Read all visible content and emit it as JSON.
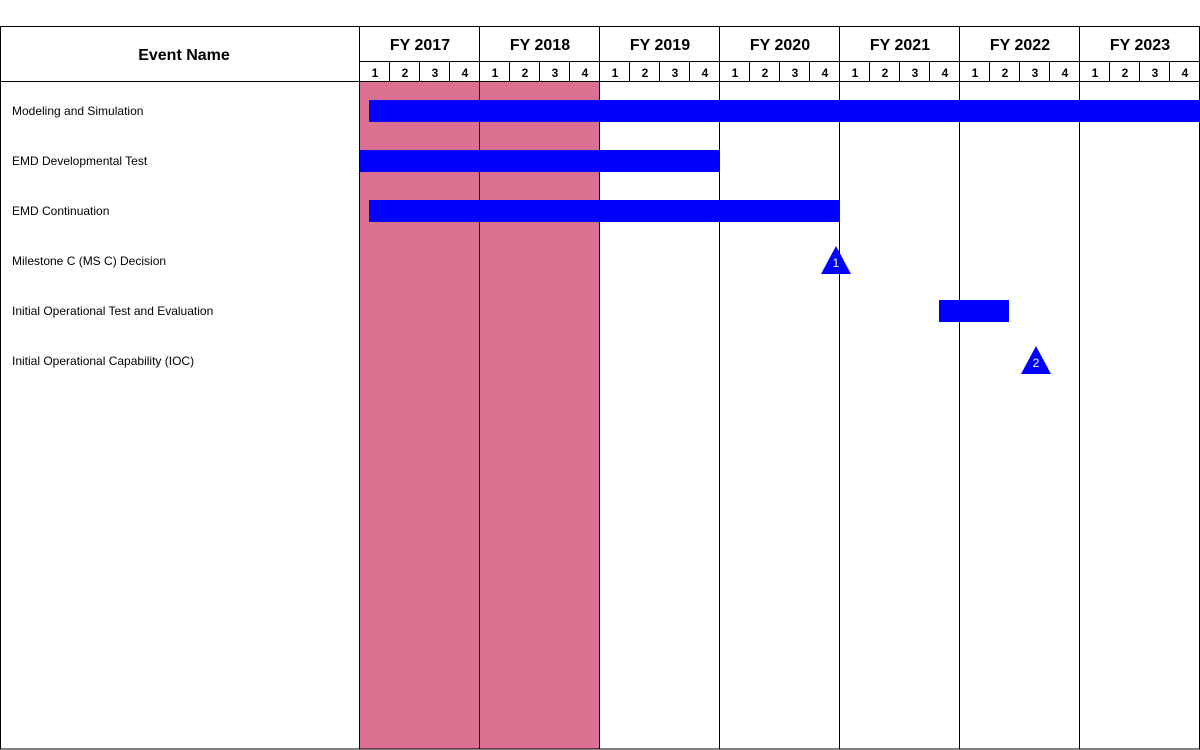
{
  "chart_data": {
    "type": "gantt",
    "header": {
      "event_column_title": "Event Name",
      "years": [
        "FY 2017",
        "FY 2018",
        "FY 2019",
        "FY 2020",
        "FY 2021",
        "FY 2022",
        "FY 2023"
      ],
      "quarters": [
        "1",
        "2",
        "3",
        "4"
      ]
    },
    "shaded_years": [
      "FY 2017",
      "FY 2018"
    ],
    "colors": {
      "shade": "#DC7090",
      "bar": "#0000FF",
      "milestone": "#0000FF",
      "milestone_text": "#FFFFFF",
      "grid": "#000000",
      "text": "#000000",
      "background": "#FFFFFF"
    },
    "events": [
      {
        "name": "Modeling and Simulation",
        "kind": "bar",
        "start": "FY 2017 Q1",
        "end": "FY 2023 Q4"
      },
      {
        "name": "EMD Developmental Test",
        "kind": "bar",
        "start": "FY 2017 Q1",
        "end": "FY 2019 Q4"
      },
      {
        "name": "EMD Continuation",
        "kind": "bar",
        "start": "FY 2017 Q1",
        "end": "FY 2020 Q4"
      },
      {
        "name": "Milestone C (MS C) Decision",
        "kind": "milestone",
        "date": "FY 2020 Q4",
        "label": "1"
      },
      {
        "name": "Initial Operational Test and Evaluation",
        "kind": "bar",
        "start": "FY 2021 Q4",
        "end": "FY 2022 Q2"
      },
      {
        "name": "Initial Operational Capability (IOC)",
        "kind": "milestone",
        "date": "FY 2022 Q3",
        "label": "2"
      }
    ]
  }
}
